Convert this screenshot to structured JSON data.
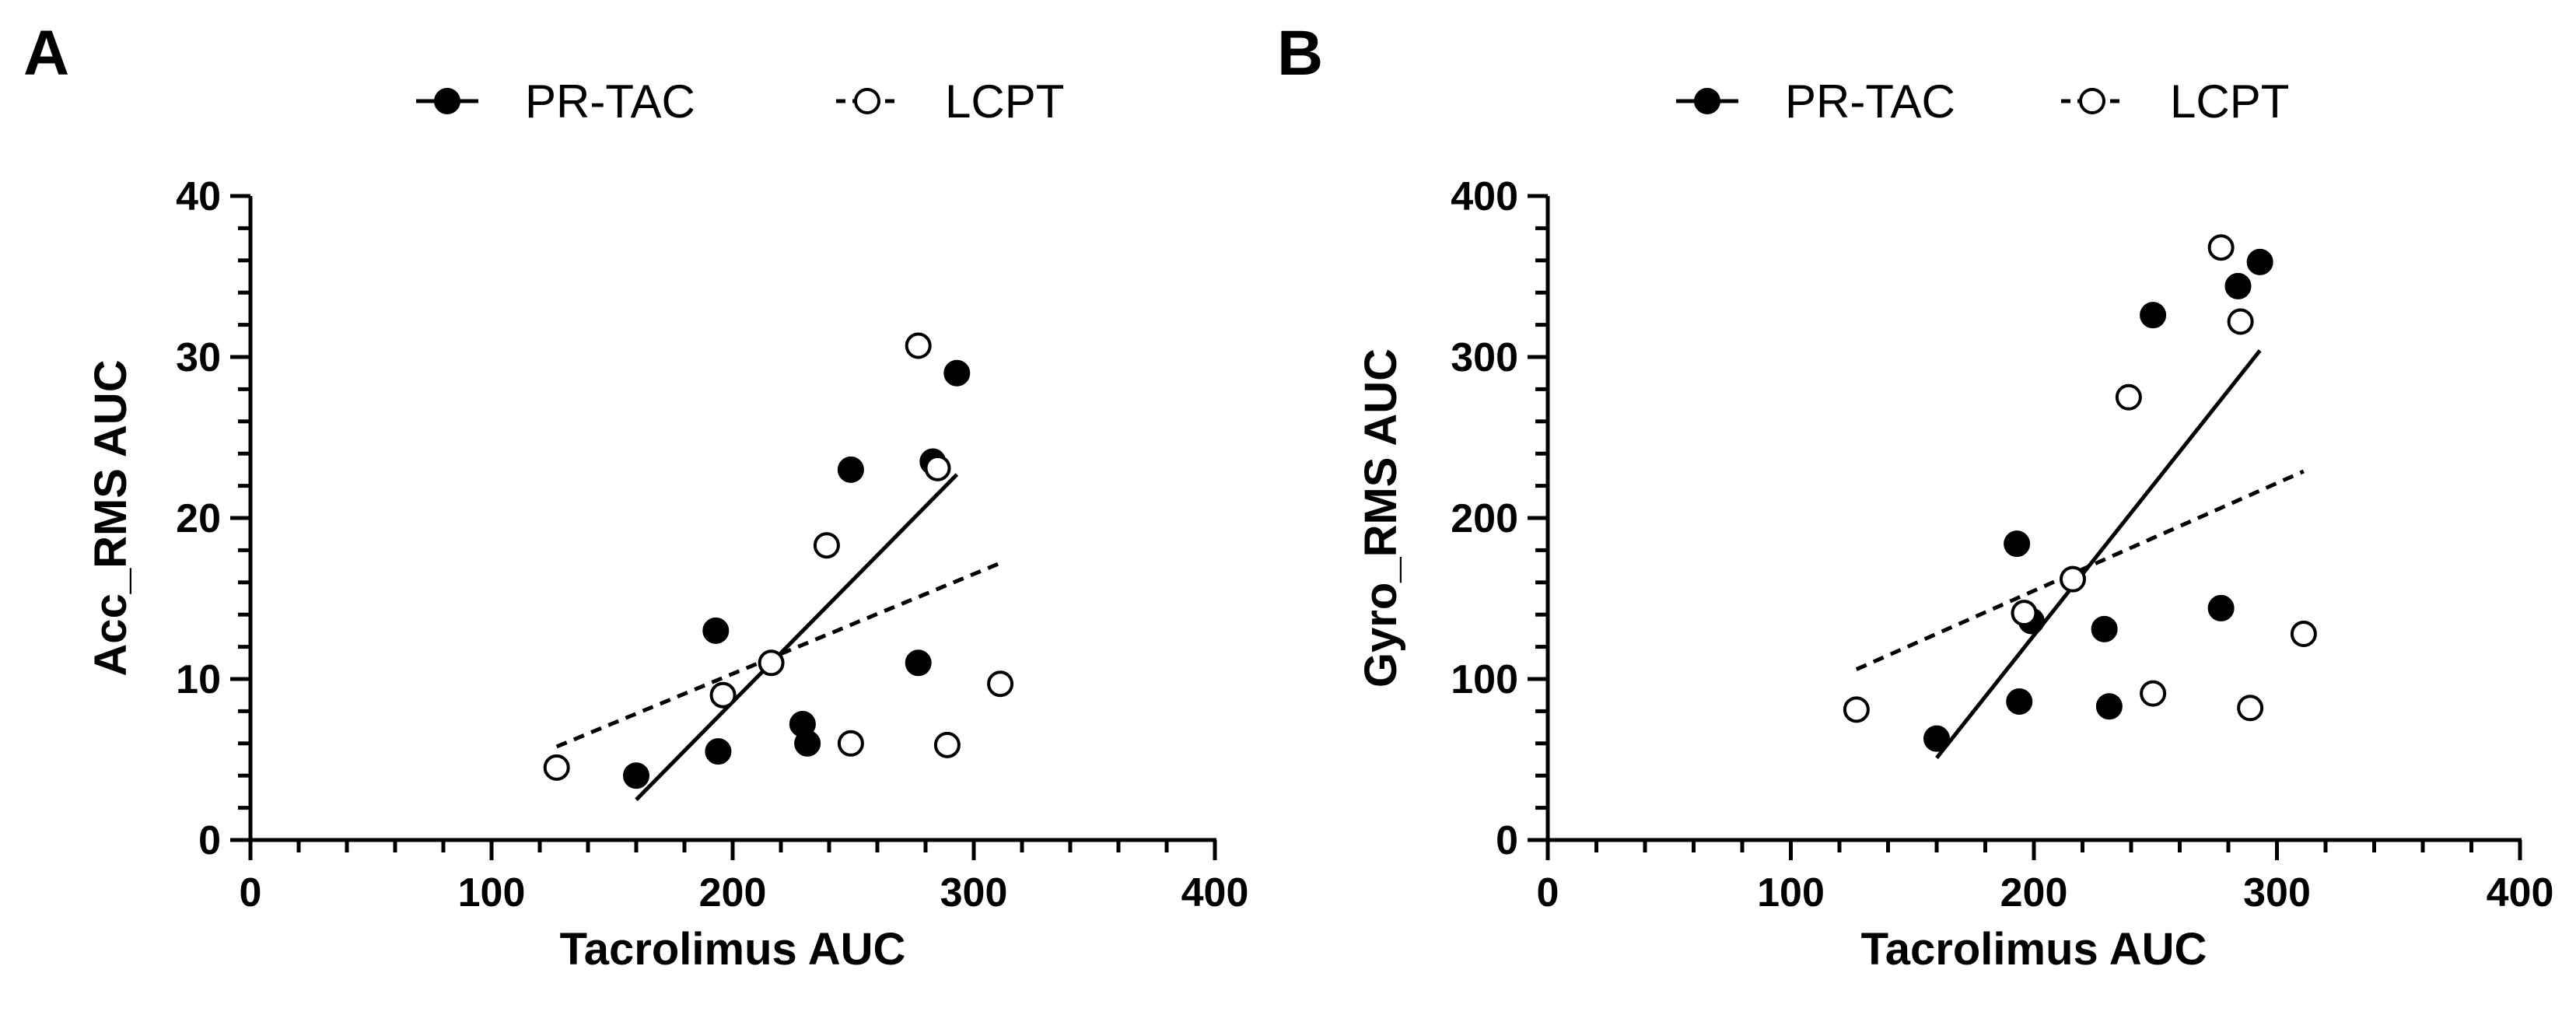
{
  "chart_data": [
    {
      "type": "scatter",
      "panel_label": "A",
      "xlabel": "Tacrolimus AUC",
      "ylabel": "Acc_RMS AUC",
      "xlim": [
        0,
        400
      ],
      "ylim": [
        0,
        40
      ],
      "x_ticks": [
        "0",
        "100",
        "200",
        "300",
        "400"
      ],
      "y_ticks": [
        "0",
        "10",
        "20",
        "30",
        "40"
      ],
      "legend_position": "top",
      "series": [
        {
          "name": "PR-TAC",
          "marker": "filled-circle",
          "line_style": "solid",
          "points": [
            [
              160,
              4
            ],
            [
              193,
              13
            ],
            [
              194,
              5.5
            ],
            [
              229,
              7.2
            ],
            [
              231,
              6
            ],
            [
              249,
              23
            ],
            [
              277,
              11
            ],
            [
              283,
              23.5
            ],
            [
              293,
              29
            ]
          ],
          "fit": [
            [
              160,
              2.5
            ],
            [
              293,
              22.7
            ]
          ]
        },
        {
          "name": "LCPT",
          "marker": "open-circle",
          "line_style": "dashed",
          "points": [
            [
              127,
              4.5
            ],
            [
              196,
              9
            ],
            [
              216,
              11
            ],
            [
              239,
              18.3
            ],
            [
              249,
              6
            ],
            [
              277,
              30.7
            ],
            [
              285,
              23.1
            ],
            [
              289,
              5.9
            ],
            [
              311,
              9.7
            ]
          ],
          "fit": [
            [
              127,
              5.8
            ],
            [
              311,
              17.2
            ]
          ]
        }
      ]
    },
    {
      "type": "scatter",
      "panel_label": "B",
      "xlabel": "Tacrolimus AUC",
      "ylabel": "Gyro_RMS AUC",
      "xlim": [
        0,
        400
      ],
      "ylim": [
        0,
        400
      ],
      "x_ticks": [
        "0",
        "100",
        "200",
        "300",
        "400"
      ],
      "y_ticks": [
        "0",
        "100",
        "200",
        "300",
        "400"
      ],
      "legend_position": "top",
      "series": [
        {
          "name": "PR-TAC",
          "marker": "filled-circle",
          "line_style": "solid",
          "points": [
            [
              160,
              63
            ],
            [
              193,
              184
            ],
            [
              194,
              86
            ],
            [
              199,
              136
            ],
            [
              229,
              131
            ],
            [
              231,
              83
            ],
            [
              249,
              326
            ],
            [
              277,
              144
            ],
            [
              284,
              344
            ],
            [
              293,
              359
            ]
          ],
          "fit": [
            [
              160,
              51
            ],
            [
              293,
              304
            ]
          ]
        },
        {
          "name": "LCPT",
          "marker": "open-circle",
          "line_style": "dashed",
          "points": [
            [
              127,
              81
            ],
            [
              196,
              141
            ],
            [
              216,
              162
            ],
            [
              239,
              275
            ],
            [
              249,
              91
            ],
            [
              277,
              368
            ],
            [
              285,
              322
            ],
            [
              289,
              82
            ],
            [
              311,
              128
            ]
          ],
          "fit": [
            [
              127,
              106
            ],
            [
              311,
              229
            ]
          ]
        }
      ]
    }
  ]
}
